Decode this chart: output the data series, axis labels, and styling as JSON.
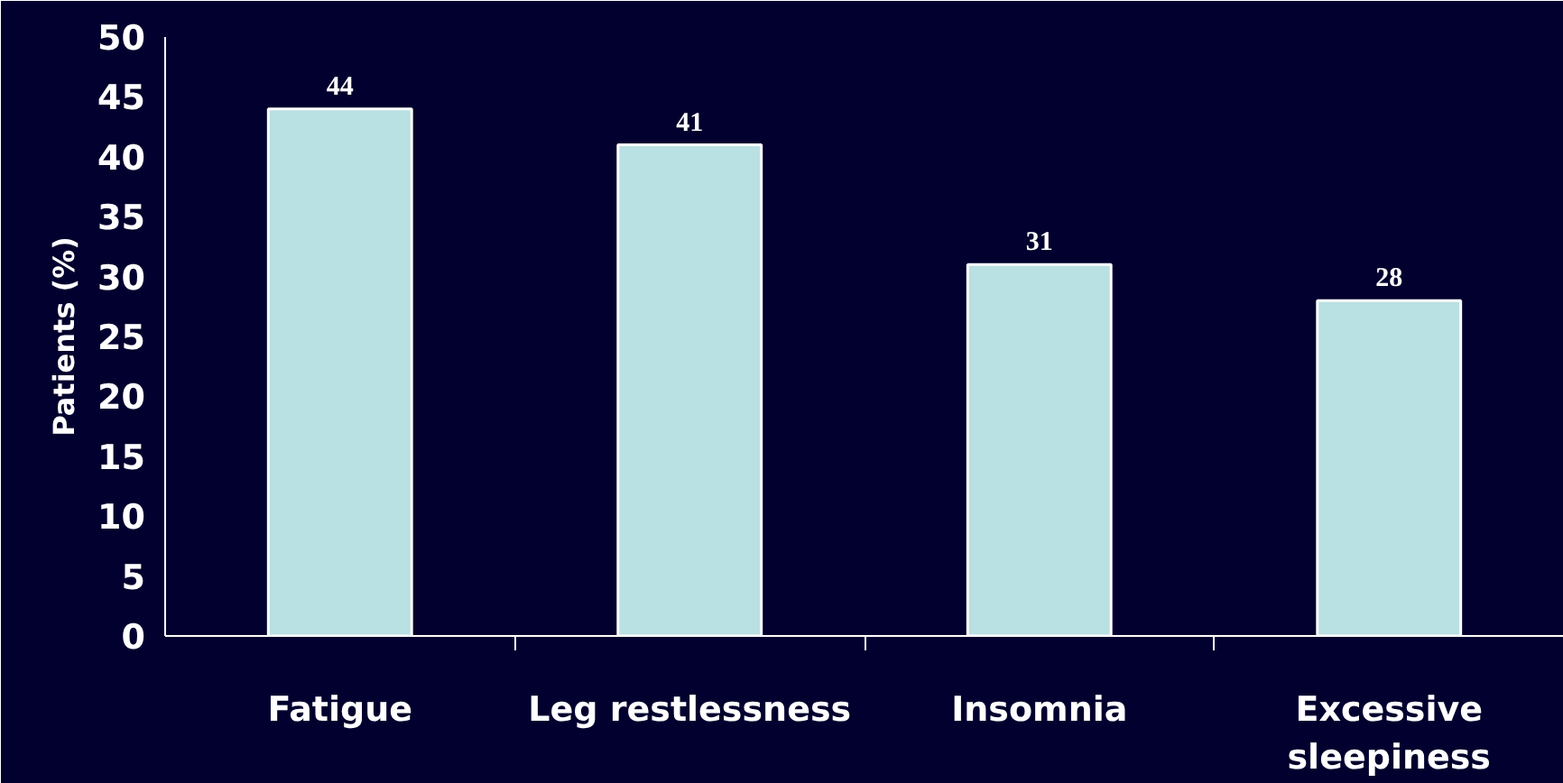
{
  "chart_data": {
    "type": "bar",
    "ylabel": "Patients (%)",
    "categories": [
      "Fatigue",
      "Leg restlessness",
      "Insomnia",
      "Excessive\nsleepiness"
    ],
    "values": [
      44,
      41,
      31,
      28
    ],
    "color": "#b9e0e3",
    "ylim": [
      0,
      50
    ],
    "yticks": [
      0,
      5,
      10,
      15,
      20,
      25,
      30,
      35,
      40,
      45,
      50
    ],
    "data_labels": true
  }
}
